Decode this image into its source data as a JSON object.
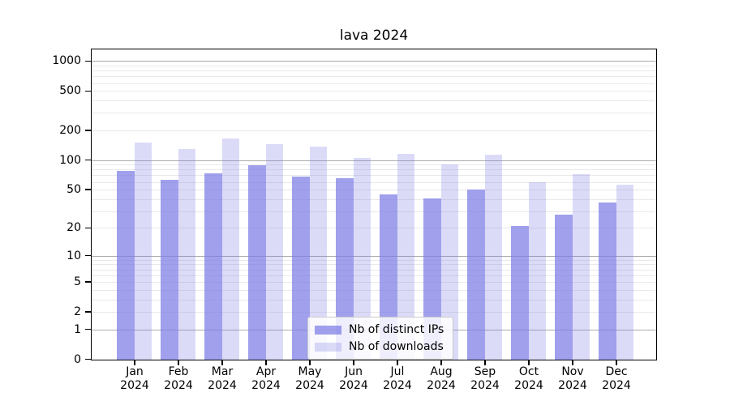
{
  "chart_data": {
    "type": "bar",
    "title": "lava 2024",
    "x_months": [
      "Jan",
      "Feb",
      "Mar",
      "Apr",
      "May",
      "Jun",
      "Jul",
      "Aug",
      "Sep",
      "Oct",
      "Nov",
      "Dec"
    ],
    "x_year": "2024",
    "series": [
      {
        "name": "Nb of distinct IPs",
        "color": "rgba(124,124,230,0.72)",
        "values": [
          78,
          64,
          74,
          90,
          69,
          66,
          45,
          41,
          51,
          21,
          28,
          37
        ]
      },
      {
        "name": "Nb of downloads",
        "color": "rgba(124,124,230,0.28)",
        "values": [
          151,
          131,
          167,
          146,
          139,
          106,
          117,
          92,
          115,
          60,
          72,
          57
        ]
      }
    ],
    "yscale": "log1p",
    "y_tick_values": [
      0,
      1,
      2,
      5,
      10,
      20,
      50,
      100,
      200,
      500,
      1000
    ],
    "y_tick_labels": [
      "0",
      "1",
      "2",
      "5",
      "10",
      "20",
      "50",
      "100",
      "200",
      "500",
      "1000"
    ],
    "ylim": [
      0,
      1300
    ],
    "grid": {
      "show": true,
      "major_color": "#ababab",
      "minor_color": "#e9e9e9"
    },
    "legend": {
      "position": "lower center"
    }
  }
}
